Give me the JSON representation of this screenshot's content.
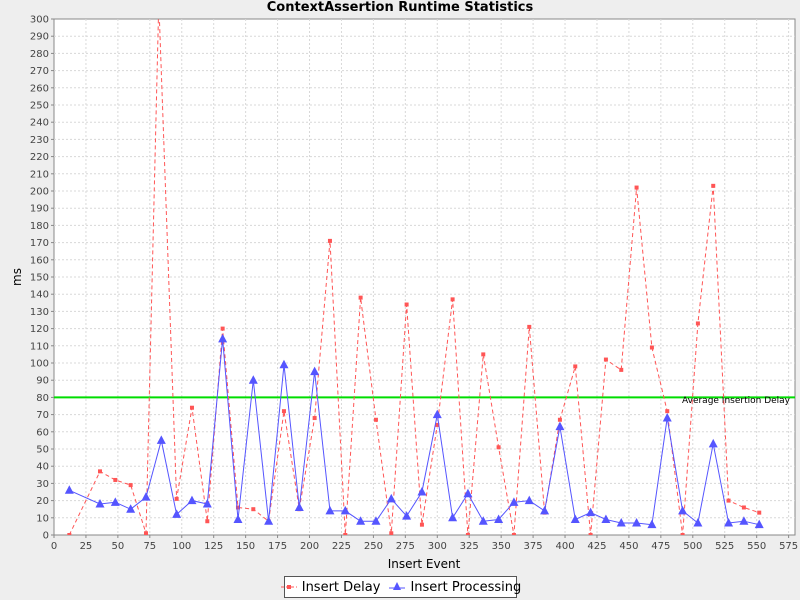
{
  "chart_data": {
    "type": "line",
    "title": "ContextAssertion Runtime Statistics",
    "xlabel": "Insert Event",
    "ylabel": "ms",
    "xlim": [
      0,
      580
    ],
    "ylim": [
      0,
      300
    ],
    "x_ticks": [
      0,
      25,
      50,
      75,
      100,
      125,
      150,
      175,
      200,
      225,
      250,
      275,
      300,
      325,
      350,
      375,
      400,
      425,
      450,
      475,
      500,
      525,
      550,
      575
    ],
    "y_ticks": [
      0,
      10,
      20,
      30,
      40,
      50,
      60,
      70,
      80,
      90,
      100,
      110,
      120,
      130,
      140,
      150,
      160,
      170,
      180,
      190,
      200,
      210,
      220,
      230,
      240,
      250,
      260,
      270,
      280,
      290,
      300
    ],
    "grid": true,
    "legend_position": "bottom",
    "series": [
      {
        "name": "Insert Delay",
        "color": "#ff5555",
        "line_style": "dashed",
        "marker": "square",
        "points": [
          [
            12,
            0
          ],
          [
            36,
            37
          ],
          [
            48,
            32
          ],
          [
            60,
            29
          ],
          [
            72,
            1
          ],
          [
            82,
            310
          ],
          [
            96,
            21
          ],
          [
            108,
            74
          ],
          [
            120,
            8
          ],
          [
            132,
            120
          ],
          [
            144,
            16
          ],
          [
            156,
            15
          ],
          [
            168,
            8
          ],
          [
            180,
            72
          ],
          [
            192,
            15
          ],
          [
            204,
            68
          ],
          [
            216,
            171
          ],
          [
            228,
            0
          ],
          [
            240,
            138
          ],
          [
            252,
            67
          ],
          [
            264,
            1
          ],
          [
            276,
            134
          ],
          [
            288,
            6
          ],
          [
            300,
            64
          ],
          [
            312,
            137
          ],
          [
            324,
            0
          ],
          [
            336,
            105
          ],
          [
            348,
            51
          ],
          [
            360,
            0
          ],
          [
            372,
            121
          ],
          [
            384,
            13
          ],
          [
            396,
            67
          ],
          [
            408,
            98
          ],
          [
            420,
            0
          ],
          [
            432,
            102
          ],
          [
            444,
            96
          ],
          [
            456,
            202
          ],
          [
            468,
            109
          ],
          [
            480,
            72
          ],
          [
            492,
            0
          ],
          [
            504,
            123
          ],
          [
            516,
            203
          ],
          [
            528,
            20
          ],
          [
            540,
            16
          ],
          [
            552,
            13
          ]
        ]
      },
      {
        "name": "Insert Processing",
        "color": "#5555ff",
        "line_style": "solid",
        "marker": "triangle",
        "points": [
          [
            12,
            26
          ],
          [
            36,
            18
          ],
          [
            48,
            19
          ],
          [
            60,
            15
          ],
          [
            72,
            22
          ],
          [
            84,
            55
          ],
          [
            96,
            12
          ],
          [
            108,
            20
          ],
          [
            120,
            18
          ],
          [
            132,
            114
          ],
          [
            144,
            9
          ],
          [
            156,
            90
          ],
          [
            168,
            8
          ],
          [
            180,
            99
          ],
          [
            192,
            16
          ],
          [
            204,
            95
          ],
          [
            216,
            14
          ],
          [
            228,
            14
          ],
          [
            240,
            8
          ],
          [
            252,
            8
          ],
          [
            264,
            21
          ],
          [
            276,
            11
          ],
          [
            288,
            25
          ],
          [
            300,
            70
          ],
          [
            312,
            10
          ],
          [
            324,
            24
          ],
          [
            336,
            8
          ],
          [
            348,
            9
          ],
          [
            360,
            19
          ],
          [
            372,
            20
          ],
          [
            384,
            14
          ],
          [
            396,
            63
          ],
          [
            408,
            9
          ],
          [
            420,
            13
          ],
          [
            432,
            9
          ],
          [
            444,
            7
          ],
          [
            456,
            7
          ],
          [
            468,
            6
          ],
          [
            480,
            68
          ],
          [
            492,
            14
          ],
          [
            504,
            7
          ],
          [
            516,
            53
          ],
          [
            528,
            7
          ],
          [
            540,
            8
          ],
          [
            552,
            6
          ]
        ]
      }
    ],
    "markers": [
      {
        "label": "Average Insertion Delay",
        "y": 80,
        "color": "#00dd00"
      }
    ]
  }
}
